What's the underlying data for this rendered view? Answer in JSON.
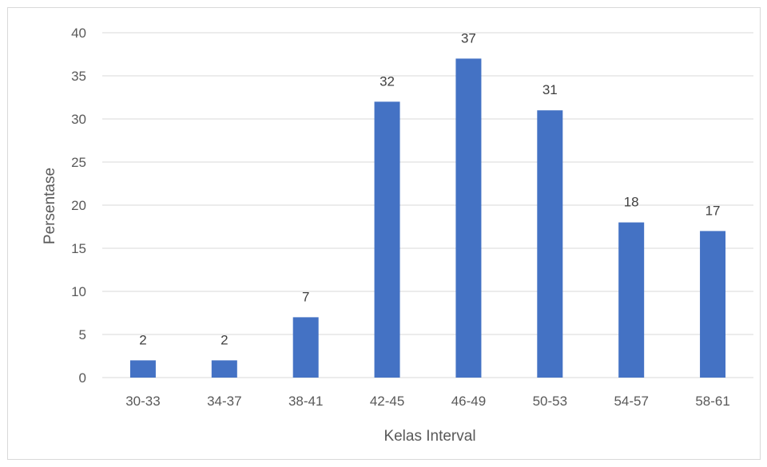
{
  "chart_data": {
    "type": "bar",
    "categories": [
      "30-33",
      "34-37",
      "38-41",
      "42-45",
      "46-49",
      "50-53",
      "54-57",
      "58-61"
    ],
    "values": [
      2,
      2,
      7,
      32,
      37,
      31,
      18,
      17
    ],
    "data_labels": [
      "2",
      "2",
      "7",
      "32",
      "37",
      "31",
      "18",
      "17"
    ],
    "title": "",
    "xlabel": "Kelas Interval",
    "ylabel": "Persentase",
    "ylim": [
      0,
      40
    ],
    "yticks": [
      "0",
      "5",
      "10",
      "15",
      "20",
      "25",
      "30",
      "35",
      "40"
    ],
    "grid": true,
    "legend": "none",
    "bar_color": "#4472c4",
    "grid_color": "#d9d9d9"
  }
}
